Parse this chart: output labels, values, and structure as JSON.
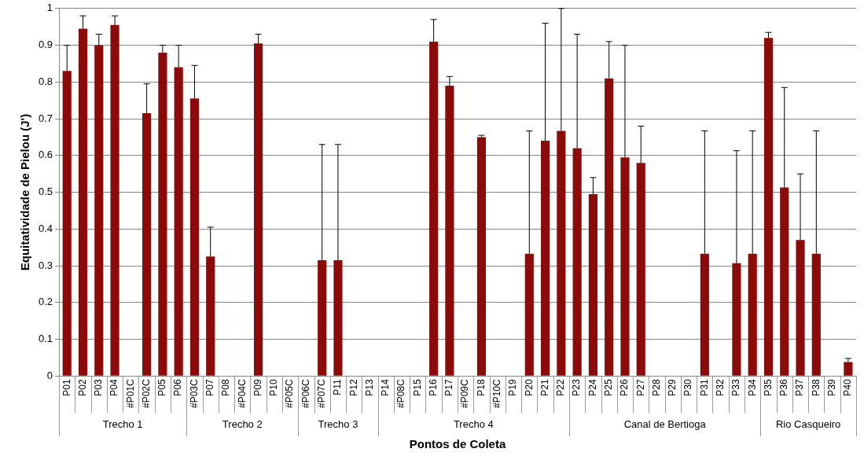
{
  "chart_data": {
    "type": "bar",
    "xlabel": "Pontos de Coleta",
    "ylabel": "Equitatividade de Pielou (J')",
    "categories": [
      "P01",
      "P02",
      "P03",
      "P04",
      "#P01C",
      "#P02C",
      "P05",
      "P06",
      "#P03C",
      "P07",
      "P08",
      "#P04C",
      "P09",
      "P10",
      "#P05C",
      "#P06C",
      "#P07C",
      "P11",
      "P12",
      "P13",
      "P14",
      "#P08C",
      "P15",
      "P16",
      "P17",
      "#P09C",
      "P18",
      "#P10C",
      "P19",
      "P20",
      "P21",
      "P22",
      "P23",
      "P24",
      "P25",
      "P26",
      "P27",
      "P28",
      "P29",
      "P30",
      "P31",
      "P32",
      "P33",
      "P34",
      "P35",
      "P36",
      "P37",
      "P38",
      "P39",
      "P40"
    ],
    "values": [
      0.83,
      0.945,
      0.9,
      0.955,
      0,
      0.715,
      0.88,
      0.84,
      0.755,
      0.325,
      0,
      0,
      0.905,
      0,
      0,
      0,
      0.315,
      0.315,
      0,
      0,
      0,
      0,
      0,
      0.91,
      0.79,
      0,
      0.65,
      0,
      0,
      0.333,
      0.64,
      0.667,
      0.62,
      0.495,
      0.81,
      0.595,
      0.58,
      0,
      0,
      0,
      0.333,
      0,
      0.307,
      0.333,
      0.92,
      0.513,
      0.37,
      0.333,
      0,
      0.038
    ],
    "errors": [
      [
        0.83,
        0.9
      ],
      [
        0.945,
        0.98
      ],
      [
        0.9,
        0.93
      ],
      [
        0.955,
        0.98
      ],
      null,
      [
        0.715,
        0.795
      ],
      [
        0.88,
        0.9
      ],
      [
        0.84,
        0.9
      ],
      [
        0.755,
        0.845
      ],
      [
        0.325,
        0.405
      ],
      null,
      null,
      [
        0.905,
        0.93
      ],
      null,
      null,
      null,
      [
        0.315,
        0.63
      ],
      [
        0.315,
        0.63
      ],
      null,
      null,
      null,
      null,
      null,
      [
        0.91,
        0.97
      ],
      [
        0.79,
        0.815
      ],
      null,
      [
        0.65,
        0.655
      ],
      null,
      null,
      [
        0.333,
        0.667
      ],
      [
        0.64,
        0.96
      ],
      [
        0.667,
        1.0
      ],
      [
        0.62,
        0.93
      ],
      [
        0.495,
        0.54
      ],
      [
        0.81,
        0.91
      ],
      [
        0.595,
        0.9
      ],
      [
        0.58,
        0.68
      ],
      null,
      null,
      null,
      [
        0.333,
        0.667
      ],
      null,
      [
        0.307,
        0.613
      ],
      [
        0.333,
        0.667
      ],
      [
        0.92,
        0.935
      ],
      [
        0.513,
        0.785
      ],
      [
        0.37,
        0.55
      ],
      [
        0.333,
        0.667
      ],
      null,
      [
        0.038,
        0.048
      ]
    ],
    "color": "#8b0a0a",
    "ylim": [
      0,
      1
    ],
    "yticks": [
      0,
      0.1,
      0.2,
      0.3,
      0.4,
      0.5,
      0.6,
      0.7,
      0.8,
      0.9,
      1
    ],
    "grid": "y",
    "legend": false,
    "annotations": [
      "Trecho 1",
      "Trecho 2",
      "Trecho 3",
      "Trecho 4",
      "Canal de Bertioga",
      "Rio Casqueiro"
    ]
  }
}
